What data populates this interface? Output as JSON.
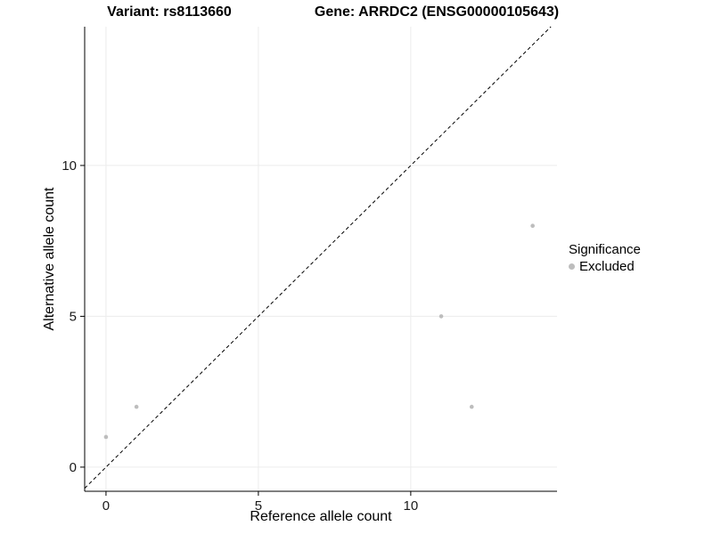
{
  "chart_data": {
    "type": "scatter",
    "title_left": "Variant: rs8113660",
    "title_right": "Gene: ARRDC2 (ENSG00000105643)",
    "xlabel": "Reference allele count",
    "ylabel": "Alternative allele count",
    "xlim": [
      -0.7,
      14.8
    ],
    "ylim": [
      -0.8,
      14.6
    ],
    "xticks": [
      0,
      5,
      10
    ],
    "yticks": [
      0,
      5,
      10
    ],
    "grid": "major-light",
    "gridline_color": "#ececec",
    "axis_color": "#000000",
    "points": [
      {
        "x": 0,
        "y": 1
      },
      {
        "x": 1,
        "y": 2
      },
      {
        "x": 11,
        "y": 5
      },
      {
        "x": 12,
        "y": 2
      },
      {
        "x": 14,
        "y": 8
      }
    ],
    "point_color": "#bdbdbd",
    "identity_line": {
      "style": "dashed",
      "color": "#000000",
      "slope": 1,
      "intercept": 0
    },
    "legend": {
      "position": "right",
      "title": "Significance",
      "entries": [
        {
          "label": "Excluded",
          "color": "#bdbdbd"
        }
      ]
    }
  }
}
